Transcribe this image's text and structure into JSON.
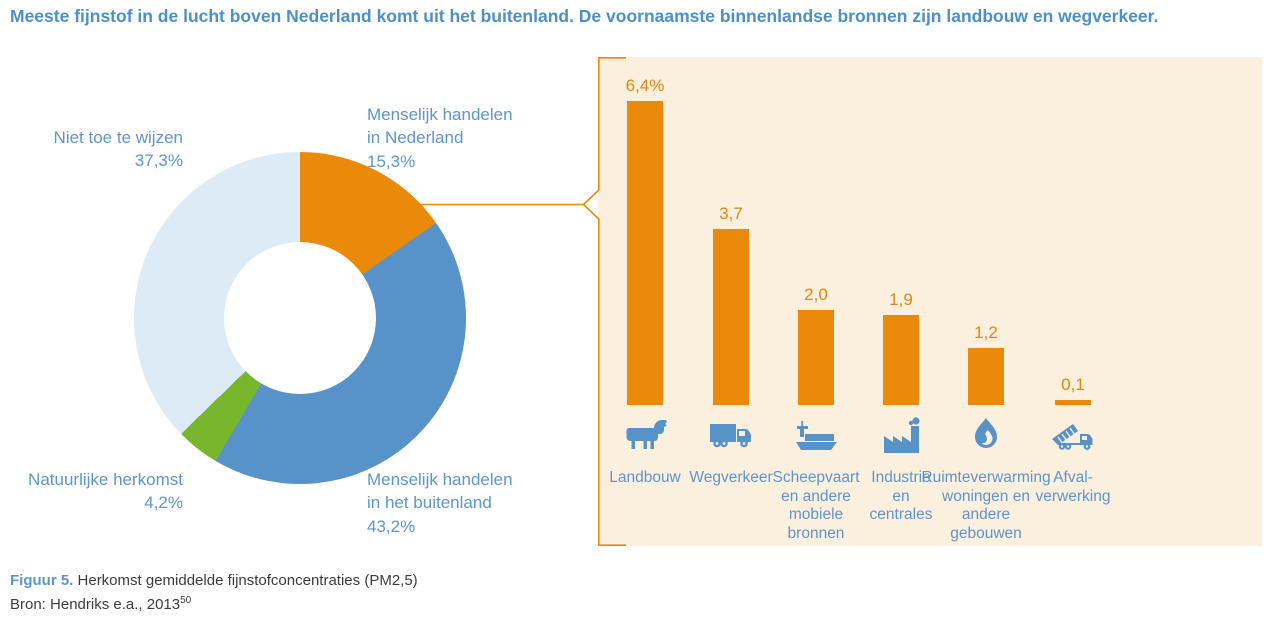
{
  "title": "Meeste fijnstof in de lucht boven Nederland komt uit het buitenland. De voornaamste binnenlandse bronnen zijn landbouw en wegverkeer.",
  "colors": {
    "orange": "#EA8A0A",
    "blue": "#5792C8",
    "green": "#78B72C",
    "light_blue": "#DCEBF6",
    "label_blue": "#5E95CB",
    "title_blue": "#4D8FC8",
    "panel_background": "#FBEFDE",
    "text_dark": "#3C3C3B"
  },
  "donut_labels": {
    "niet_toe_te_wijzen": "Niet toe te wijzen\n37,3%",
    "menselijk_nederland": "Menselijk handelen\nin Nederland\n15,3%",
    "natuurlijke_herkomst": "Natuurlijke herkomst\n4,2%",
    "menselijk_buitenland": "Menselijk handelen\nin het buitenland\n43,2%"
  },
  "chart_data": [
    {
      "type": "pie",
      "subtype": "donut",
      "unit": "%",
      "start_angle_deg": 0,
      "direction": "clockwise",
      "segments": [
        {
          "label": "Menselijk handelen in Nederland",
          "value": 15.3,
          "value_label": "15,3%",
          "color": "#EA8A0A"
        },
        {
          "label": "Menselijk handelen in het buitenland",
          "value": 43.2,
          "value_label": "43,2%",
          "color": "#5792C8"
        },
        {
          "label": "Natuurlijke herkomst",
          "value": 4.2,
          "value_label": "4,2%",
          "color": "#78B72C"
        },
        {
          "label": "Niet toe te wijzen",
          "value": 37.3,
          "value_label": "37,3%",
          "color": "#DCEBF6"
        }
      ]
    },
    {
      "type": "bar",
      "unit": "%",
      "bar_color": "#EA8A0A",
      "categories": [
        "Landbouw",
        "Wegverkeer",
        "Scheepvaart en andere mobiele bronnen",
        "Industrie en centrales",
        "Ruimteverwarming woningen en andere gebouwen",
        "Afval-verwerking"
      ],
      "categories_multiline": [
        "Landbouw",
        "Wegverkeer",
        "Scheepvaart\nen andere\nmobiele\nbronnen",
        "Industrie\nen\ncentrales",
        "Ruimteverwarming\nwoningen en\nandere\ngebouwen",
        "Afval-\nverwerking"
      ],
      "values": [
        6.4,
        3.7,
        2.0,
        1.9,
        1.2,
        0.1
      ],
      "value_labels": [
        "6,4%",
        "3,7",
        "2,0",
        "1,9",
        "1,2",
        "0,1"
      ],
      "icons": [
        "cow-icon",
        "truck-icon",
        "ship-icon",
        "factory-icon",
        "flame-icon",
        "dump-truck-icon"
      ]
    }
  ],
  "caption": {
    "figure_label": "Figuur 5.",
    "figure_text": "Herkomst gemiddelde fijnstofconcentraties (PM2,5)",
    "source_text": "Bron: Hendriks e.a., 2013",
    "source_superscript": "50"
  }
}
